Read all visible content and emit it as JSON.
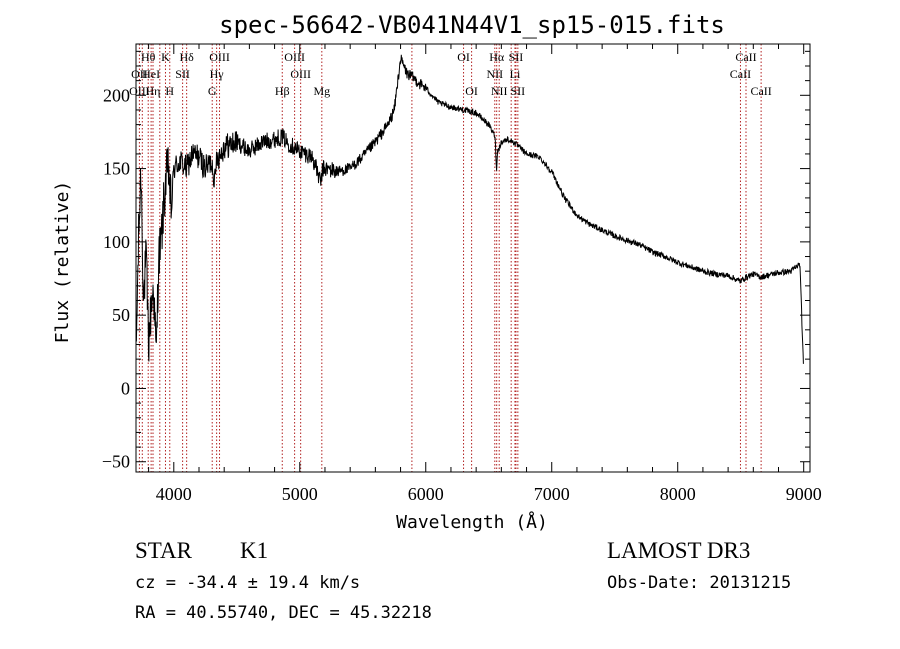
{
  "chart_data": {
    "type": "line",
    "title": "spec-56642-VB041N44V1_sp15-015.fits",
    "xlabel": "Wavelength (Å)",
    "ylabel": "Flux (relative)",
    "xlim": [
      3700,
      9050
    ],
    "ylim": [
      -57,
      235
    ],
    "x_ticks": [
      4000,
      5000,
      6000,
      7000,
      8000,
      9000
    ],
    "x_tick_labels": [
      "4000",
      "5000",
      "6000",
      "7000",
      "8000",
      "9000"
    ],
    "y_ticks": [
      -50,
      0,
      50,
      100,
      150,
      200
    ],
    "y_tick_labels": [
      "−50",
      "0",
      "50",
      "100",
      "150",
      "200"
    ],
    "series": [
      {
        "name": "flux",
        "x": [
          3700,
          3720,
          3740,
          3760,
          3780,
          3800,
          3820,
          3840,
          3860,
          3880,
          3900,
          3920,
          3940,
          3960,
          3980,
          4000,
          4050,
          4100,
          4150,
          4200,
          4250,
          4300,
          4330,
          4340,
          4360,
          4400,
          4500,
          4600,
          4700,
          4800,
          4861,
          4900,
          5000,
          5100,
          5167,
          5183,
          5200,
          5300,
          5400,
          5500,
          5600,
          5700,
          5750,
          5800,
          5850,
          5900,
          5950,
          6000,
          6100,
          6200,
          6300,
          6400,
          6500,
          6550,
          6563,
          6570,
          6600,
          6650,
          6700,
          6800,
          6900,
          7000,
          7100,
          7200,
          7300,
          7400,
          7500,
          7600,
          7700,
          7800,
          7900,
          8000,
          8100,
          8200,
          8300,
          8400,
          8450,
          8498,
          8542,
          8600,
          8662,
          8700,
          8800,
          8900,
          8970,
          9000
        ],
        "y": [
          20,
          100,
          150,
          60,
          90,
          30,
          55,
          70,
          20,
          90,
          100,
          125,
          145,
          150,
          120,
          150,
          155,
          150,
          160,
          158,
          150,
          155,
          140,
          160,
          158,
          165,
          168,
          162,
          168,
          170,
          172,
          168,
          162,
          158,
          140,
          150,
          150,
          148,
          150,
          158,
          168,
          180,
          190,
          225,
          215,
          212,
          208,
          205,
          195,
          192,
          190,
          188,
          180,
          172,
          148,
          162,
          168,
          170,
          168,
          160,
          158,
          148,
          130,
          118,
          112,
          108,
          104,
          101,
          98,
          93,
          90,
          86,
          83,
          80,
          78,
          77,
          75,
          73,
          76,
          78,
          76,
          77,
          79,
          80,
          85,
          10
        ]
      }
    ],
    "line_markers": [
      {
        "label": "Hθ",
        "wavelength": 3797,
        "row": 0
      },
      {
        "label": "OII",
        "wavelength": 3727,
        "row": 1
      },
      {
        "label": "OIII",
        "wavelength": 3727,
        "row": 2
      },
      {
        "label": "HeI",
        "wavelength": 3820,
        "row": 1
      },
      {
        "label": "Hη",
        "wavelength": 3835,
        "row": 2
      },
      {
        "label": "K",
        "wavelength": 3934,
        "row": 0
      },
      {
        "label": "SII",
        "wavelength": 4070,
        "row": 1
      },
      {
        "label": "H",
        "wavelength": 3968,
        "row": 2
      },
      {
        "label": "Hδ",
        "wavelength": 4102,
        "row": 0
      },
      {
        "label": "OIII",
        "wavelength": 4363,
        "row": 0
      },
      {
        "label": "Hγ",
        "wavelength": 4340,
        "row": 1
      },
      {
        "label": "G",
        "wavelength": 4305,
        "row": 2
      },
      {
        "label": "OIII",
        "wavelength": 4959,
        "row": 0
      },
      {
        "label": "OIII",
        "wavelength": 5007,
        "row": 1
      },
      {
        "label": "Hβ",
        "wavelength": 4861,
        "row": 2
      },
      {
        "label": "Mg",
        "wavelength": 5175,
        "row": 2
      },
      {
        "label": "OI",
        "wavelength": 6300,
        "row": 0
      },
      {
        "label": "OI",
        "wavelength": 6364,
        "row": 2
      },
      {
        "label": "Hα",
        "wavelength": 6563,
        "row": 0
      },
      {
        "label": "SII",
        "wavelength": 6716,
        "row": 0
      },
      {
        "label": "NII",
        "wavelength": 6548,
        "row": 1
      },
      {
        "label": "Li",
        "wavelength": 6708,
        "row": 1
      },
      {
        "label": "NII",
        "wavelength": 6583,
        "row": 2
      },
      {
        "label": "SII",
        "wavelength": 6731,
        "row": 2
      },
      {
        "label": "CaII",
        "wavelength": 8542,
        "row": 0
      },
      {
        "label": "CaII",
        "wavelength": 8498,
        "row": 1
      },
      {
        "label": "CaII",
        "wavelength": 8662,
        "row": 2
      }
    ],
    "extra_marker_wavelengths": [
      3750,
      3889,
      5890,
      6678
    ]
  },
  "info": {
    "class_label": "STAR",
    "subclass": "K1",
    "survey": "LAMOST DR3",
    "cz_text": "cz = -34.4 ± 19.4 km/s",
    "obs_date_text": "Obs-Date: 20131215",
    "coords_text": "RA =  40.55740, DEC =  45.32218"
  },
  "colors": {
    "spectrum": "#000000",
    "marker_lines": "#b22222",
    "axes": "#000000",
    "background": "#ffffff"
  }
}
